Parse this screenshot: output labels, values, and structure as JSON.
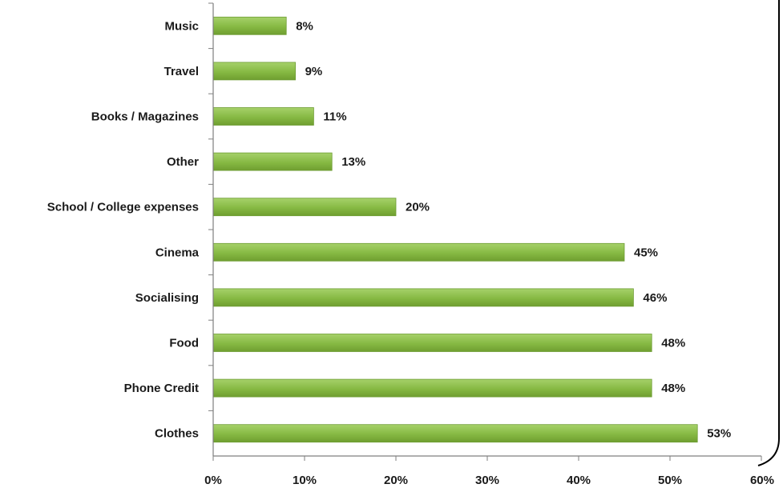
{
  "chart_data": {
    "type": "bar",
    "orientation": "horizontal",
    "title": "",
    "xlabel": "",
    "ylabel": "",
    "categories": [
      "Music",
      "Travel",
      "Books / Magazines",
      "Other",
      "School / College expenses",
      "Cinema",
      "Socialising",
      "Food",
      "Phone Credit",
      "Clothes"
    ],
    "values": [
      8,
      9,
      11,
      13,
      20,
      45,
      46,
      48,
      48,
      53
    ],
    "value_labels": [
      "8%",
      "9%",
      "11%",
      "13%",
      "20%",
      "45%",
      "46%",
      "48%",
      "48%",
      "53%"
    ],
    "xlim": [
      0,
      60
    ],
    "x_ticks": [
      0,
      10,
      20,
      30,
      40,
      50,
      60
    ],
    "x_tick_labels": [
      "0%",
      "10%",
      "20%",
      "30%",
      "40%",
      "50%",
      "60%"
    ],
    "grid": false,
    "legend": "none",
    "bar_color": "#8bc34a",
    "bar_edge_color": "#6e9d34"
  }
}
